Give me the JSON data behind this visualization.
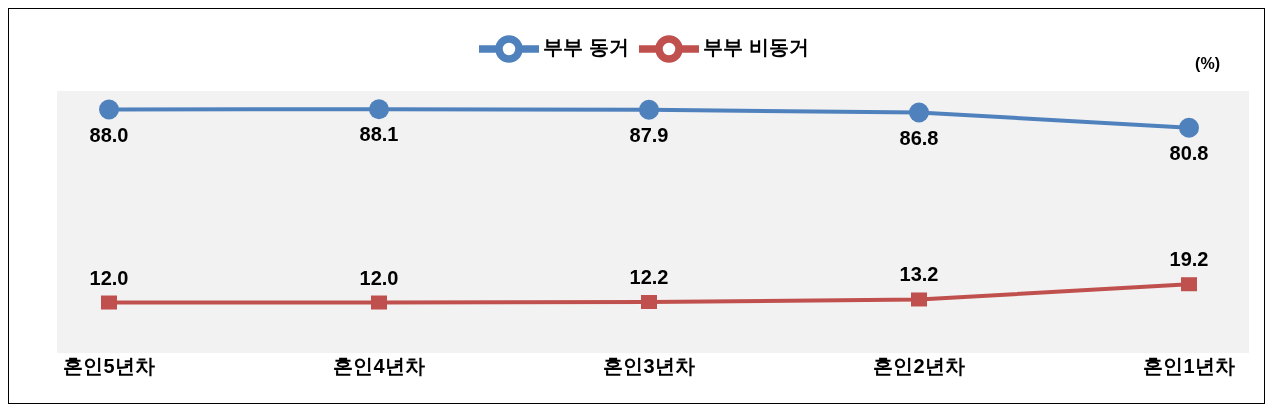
{
  "chart_data": {
    "type": "line",
    "categories": [
      "혼인5년차",
      "혼인4년차",
      "혼인3년차",
      "혼인2년차",
      "혼인1년차"
    ],
    "series": [
      {
        "name": "부부 동거",
        "color": "#4f81bd",
        "marker": "circle",
        "values": [
          88.0,
          88.1,
          87.9,
          86.8,
          80.8
        ],
        "value_labels": [
          "88.0",
          "88.1",
          "87.9",
          "86.8",
          "80.8"
        ]
      },
      {
        "name": "부부 비동거",
        "color": "#c0504d",
        "marker": "square",
        "values": [
          12.0,
          12.0,
          12.2,
          13.2,
          19.2
        ],
        "value_labels": [
          "12.0",
          "12.0",
          "12.2",
          "13.2",
          "19.2"
        ]
      }
    ],
    "legend": "top",
    "annotations": [
      "(%)"
    ]
  }
}
